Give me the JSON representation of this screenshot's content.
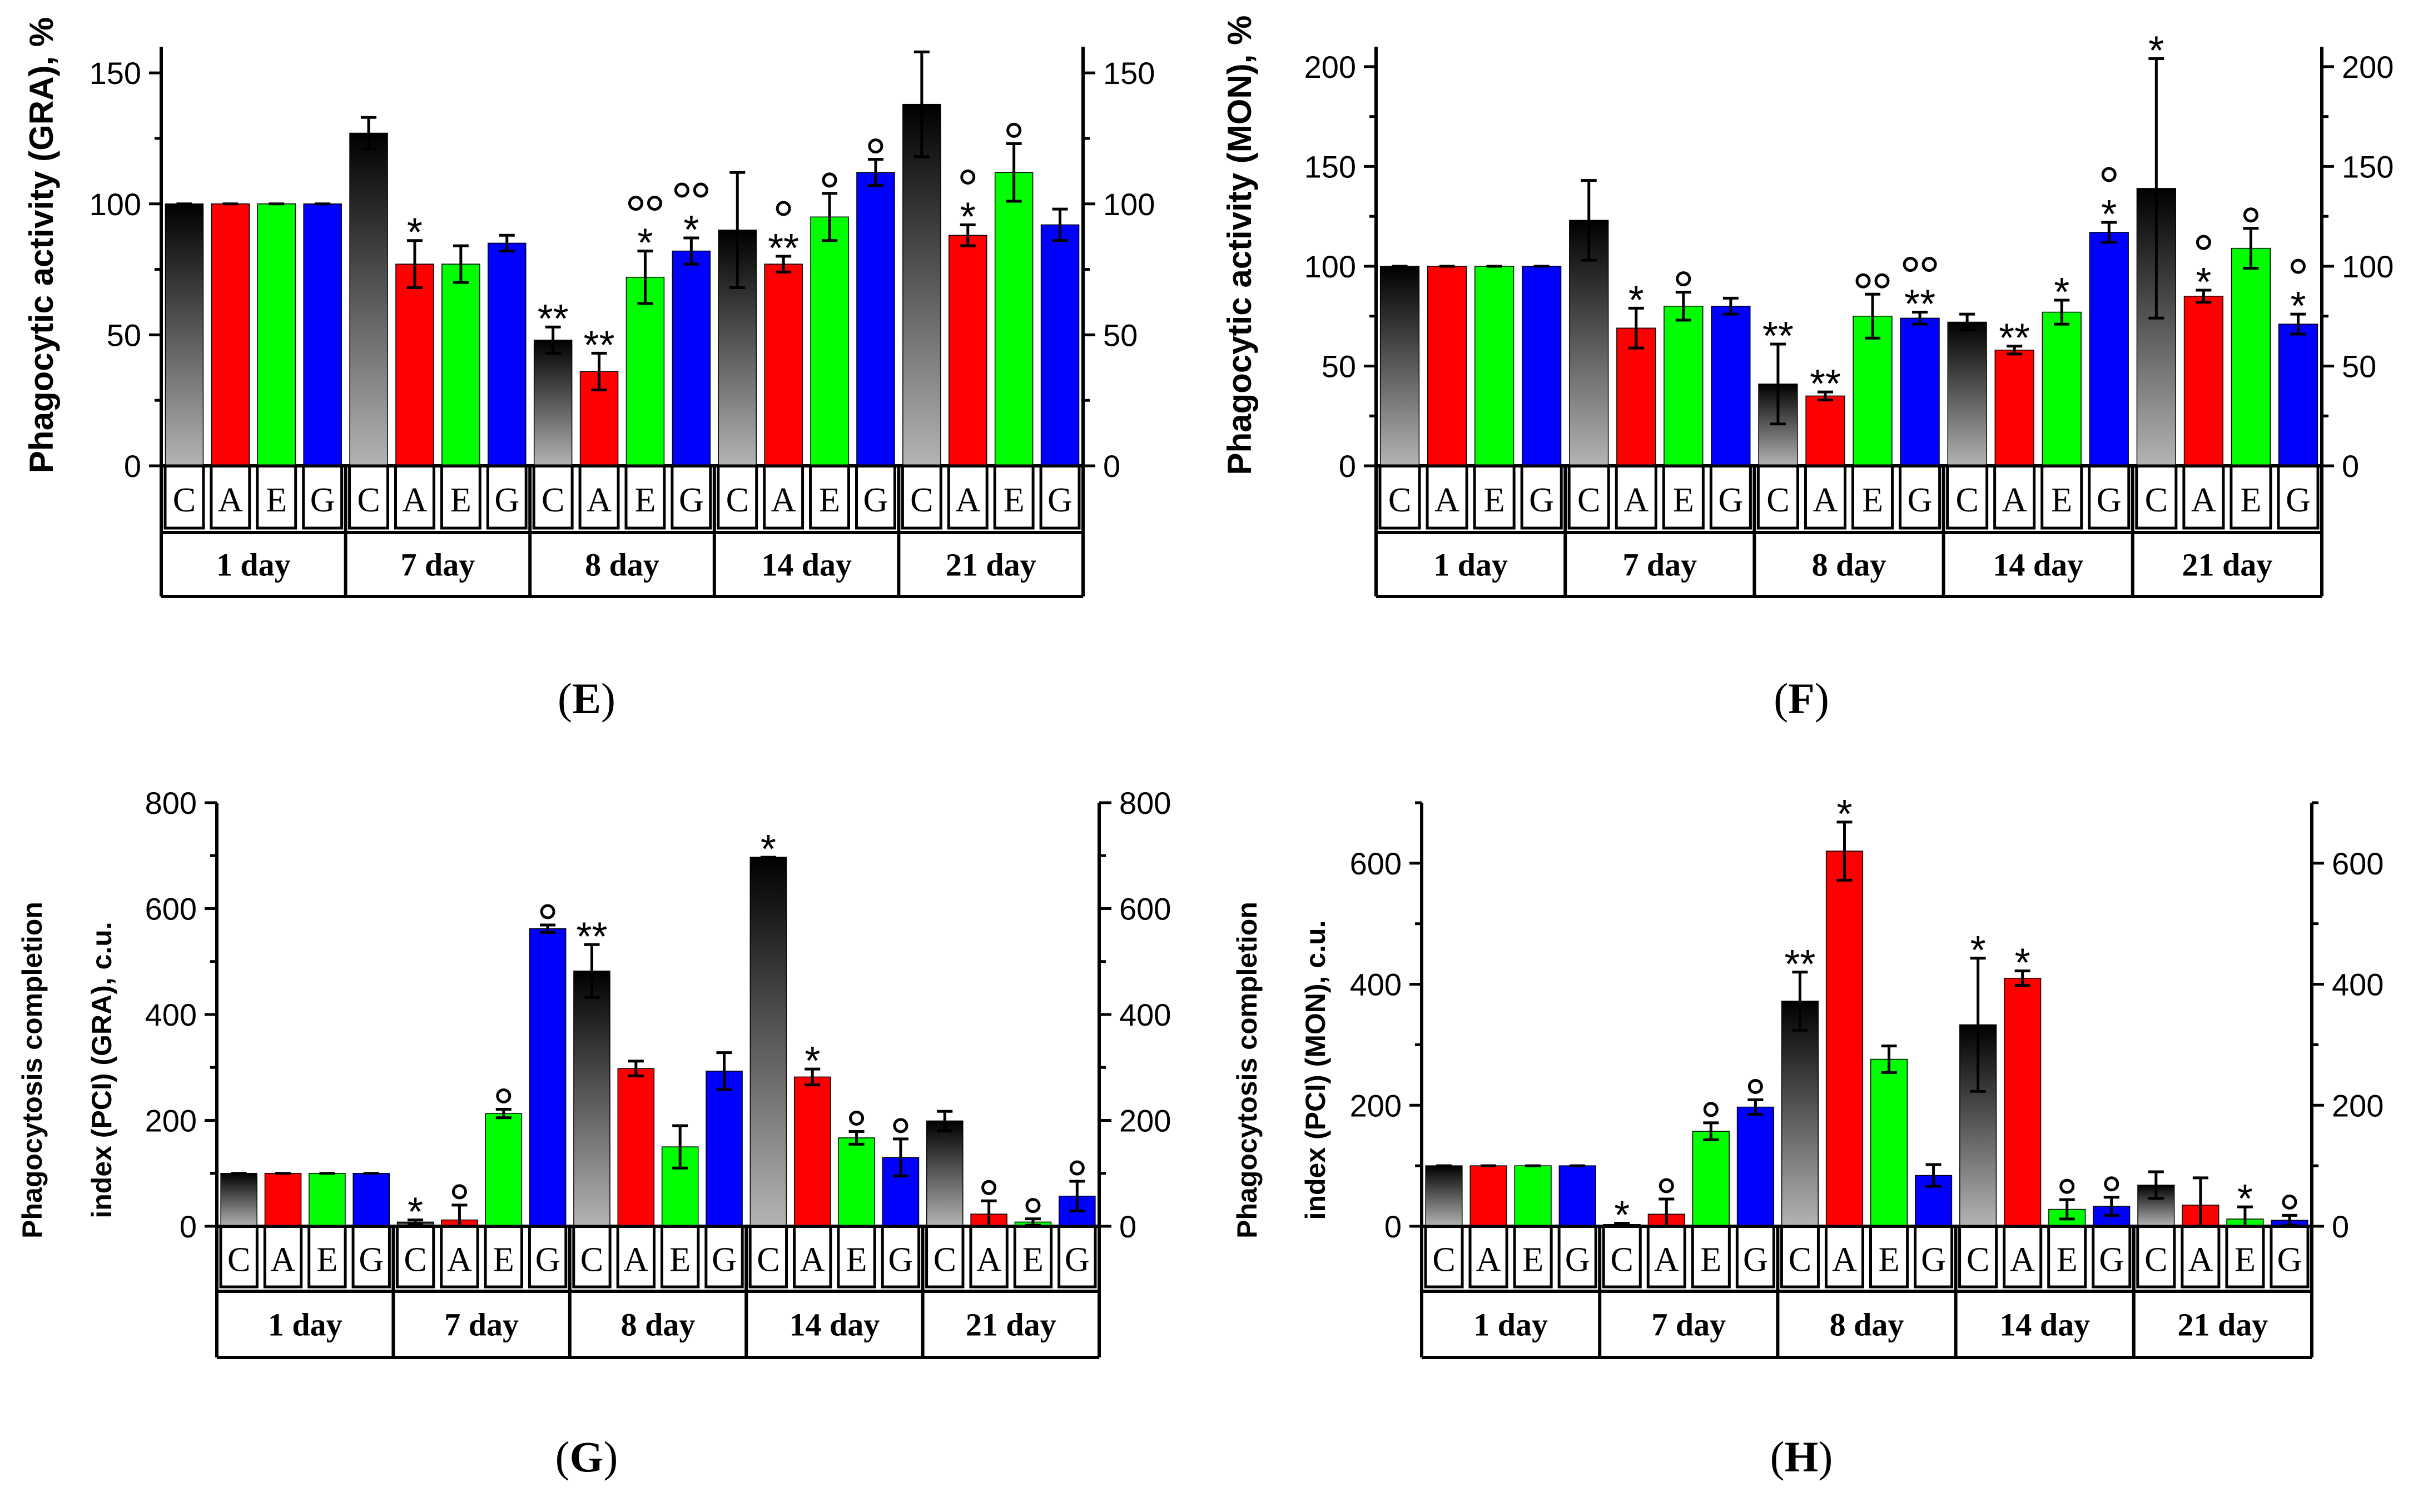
{
  "colors": {
    "C_top": "#000000",
    "C_bottom": "#b4b4b4",
    "A": "#ff0000",
    "E": "#00ff00",
    "G": "#0000ff",
    "axis": "#000000"
  },
  "chart_data": [
    {
      "type": "bar",
      "panel_label": "E",
      "ylabel": "Phagocytic activity (GRA), %",
      "ylim": [
        0,
        160
      ],
      "yticks": [
        0,
        50,
        100,
        150
      ],
      "groups": [
        "1 day",
        "7 day",
        "8 day",
        "14 day",
        "21 day"
      ],
      "categories": [
        "C",
        "A",
        "E",
        "G"
      ],
      "bars": [
        {
          "group": "1 day",
          "cat": "C",
          "value": 100,
          "err": 0,
          "star": "",
          "circles": 0
        },
        {
          "group": "1 day",
          "cat": "A",
          "value": 100,
          "err": 0,
          "star": "",
          "circles": 0
        },
        {
          "group": "1 day",
          "cat": "E",
          "value": 100,
          "err": 0,
          "star": "",
          "circles": 0
        },
        {
          "group": "1 day",
          "cat": "G",
          "value": 100,
          "err": 0,
          "star": "",
          "circles": 0
        },
        {
          "group": "7 day",
          "cat": "C",
          "value": 127,
          "err": 6,
          "star": "",
          "circles": 0
        },
        {
          "group": "7 day",
          "cat": "A",
          "value": 77,
          "err": 9,
          "star": "*",
          "circles": 0
        },
        {
          "group": "7 day",
          "cat": "E",
          "value": 77,
          "err": 7,
          "star": "",
          "circles": 0
        },
        {
          "group": "7 day",
          "cat": "G",
          "value": 85,
          "err": 3,
          "star": "",
          "circles": 0
        },
        {
          "group": "8 day",
          "cat": "C",
          "value": 48,
          "err": 5,
          "star": "**",
          "circles": 0
        },
        {
          "group": "8 day",
          "cat": "A",
          "value": 36,
          "err": 7,
          "star": "**",
          "circles": 0
        },
        {
          "group": "8 day",
          "cat": "E",
          "value": 72,
          "err": 10,
          "star": "*",
          "circles": 2
        },
        {
          "group": "8 day",
          "cat": "G",
          "value": 82,
          "err": 5,
          "star": "*",
          "circles": 2
        },
        {
          "group": "14 day",
          "cat": "C",
          "value": 90,
          "err": 22,
          "star": "",
          "circles": 0
        },
        {
          "group": "14 day",
          "cat": "A",
          "value": 77,
          "err": 3,
          "star": "**",
          "circles": 1
        },
        {
          "group": "14 day",
          "cat": "E",
          "value": 95,
          "err": 9,
          "star": "",
          "circles": 1
        },
        {
          "group": "14 day",
          "cat": "G",
          "value": 112,
          "err": 5,
          "star": "",
          "circles": 1
        },
        {
          "group": "21 day",
          "cat": "C",
          "value": 138,
          "err": 20,
          "star": "",
          "circles": 0
        },
        {
          "group": "21 day",
          "cat": "A",
          "value": 88,
          "err": 4,
          "star": "*",
          "circles": 1
        },
        {
          "group": "21 day",
          "cat": "E",
          "value": 112,
          "err": 11,
          "star": "",
          "circles": 1
        },
        {
          "group": "21 day",
          "cat": "G",
          "value": 92,
          "err": 6,
          "star": "",
          "circles": 0
        }
      ]
    },
    {
      "type": "bar",
      "panel_label": "F",
      "ylabel": "Phagocytic activity (MON), %",
      "ylim": [
        0,
        210
      ],
      "yticks": [
        0,
        50,
        100,
        150,
        200
      ],
      "groups": [
        "1 day",
        "7 day",
        "8 day",
        "14 day",
        "21 day"
      ],
      "categories": [
        "C",
        "A",
        "E",
        "G"
      ],
      "bars": [
        {
          "group": "1 day",
          "cat": "C",
          "value": 100,
          "err": 0,
          "star": "",
          "circles": 0
        },
        {
          "group": "1 day",
          "cat": "A",
          "value": 100,
          "err": 0,
          "star": "",
          "circles": 0
        },
        {
          "group": "1 day",
          "cat": "E",
          "value": 100,
          "err": 0,
          "star": "",
          "circles": 0
        },
        {
          "group": "1 day",
          "cat": "G",
          "value": 100,
          "err": 0,
          "star": "",
          "circles": 0
        },
        {
          "group": "7 day",
          "cat": "C",
          "value": 123,
          "err": 20,
          "star": "",
          "circles": 0
        },
        {
          "group": "7 day",
          "cat": "A",
          "value": 69,
          "err": 10,
          "star": "*",
          "circles": 0
        },
        {
          "group": "7 day",
          "cat": "E",
          "value": 80,
          "err": 7,
          "star": "",
          "circles": 1
        },
        {
          "group": "7 day",
          "cat": "G",
          "value": 80,
          "err": 4,
          "star": "",
          "circles": 0
        },
        {
          "group": "8 day",
          "cat": "C",
          "value": 41,
          "err": 20,
          "star": "**",
          "circles": 0
        },
        {
          "group": "8 day",
          "cat": "A",
          "value": 35,
          "err": 2,
          "star": "**",
          "circles": 0
        },
        {
          "group": "8 day",
          "cat": "E",
          "value": 75,
          "err": 11,
          "star": "",
          "circles": 2
        },
        {
          "group": "8 day",
          "cat": "G",
          "value": 74,
          "err": 3,
          "star": "**",
          "circles": 2
        },
        {
          "group": "14 day",
          "cat": "C",
          "value": 72,
          "err": 4,
          "star": "",
          "circles": 0
        },
        {
          "group": "14 day",
          "cat": "A",
          "value": 58,
          "err": 2,
          "star": "**",
          "circles": 0
        },
        {
          "group": "14 day",
          "cat": "E",
          "value": 77,
          "err": 6,
          "star": "*",
          "circles": 0
        },
        {
          "group": "14 day",
          "cat": "G",
          "value": 117,
          "err": 5,
          "star": "*",
          "circles": 1
        },
        {
          "group": "21 day",
          "cat": "C",
          "value": 139,
          "err": 65,
          "star": "*",
          "circles": 0
        },
        {
          "group": "21 day",
          "cat": "A",
          "value": 85,
          "err": 3,
          "star": "*",
          "circles": 1
        },
        {
          "group": "21 day",
          "cat": "E",
          "value": 109,
          "err": 10,
          "star": "",
          "circles": 1
        },
        {
          "group": "21 day",
          "cat": "G",
          "value": 71,
          "err": 5,
          "star": "*",
          "circles": 1
        }
      ]
    },
    {
      "type": "bar",
      "panel_label": "G",
      "ylabel_line1": "Phagocytosis completion",
      "ylabel_line2": "index (PCI) (GRA), c.u.",
      "ylim": [
        0,
        800
      ],
      "yticks": [
        0,
        200,
        400,
        600,
        800
      ],
      "groups": [
        "1 day",
        "7 day",
        "8 day",
        "14 day",
        "21 day"
      ],
      "categories": [
        "C",
        "A",
        "E",
        "G"
      ],
      "bars": [
        {
          "group": "1 day",
          "cat": "C",
          "value": 100,
          "err": 0,
          "star": "",
          "circles": 0
        },
        {
          "group": "1 day",
          "cat": "A",
          "value": 100,
          "err": 0,
          "star": "",
          "circles": 0
        },
        {
          "group": "1 day",
          "cat": "E",
          "value": 100,
          "err": 0,
          "star": "",
          "circles": 0
        },
        {
          "group": "1 day",
          "cat": "G",
          "value": 100,
          "err": 0,
          "star": "",
          "circles": 0
        },
        {
          "group": "7 day",
          "cat": "C",
          "value": 8,
          "err": 4,
          "star": "*",
          "circles": 0
        },
        {
          "group": "7 day",
          "cat": "A",
          "value": 12,
          "err": 28,
          "star": "",
          "circles": 1
        },
        {
          "group": "7 day",
          "cat": "E",
          "value": 213,
          "err": 8,
          "star": "",
          "circles": 1
        },
        {
          "group": "7 day",
          "cat": "G",
          "value": 562,
          "err": 7,
          "star": "",
          "circles": 1
        },
        {
          "group": "8 day",
          "cat": "C",
          "value": 482,
          "err": 50,
          "star": "**",
          "circles": 0
        },
        {
          "group": "8 day",
          "cat": "A",
          "value": 298,
          "err": 14,
          "star": "",
          "circles": 0
        },
        {
          "group": "8 day",
          "cat": "E",
          "value": 150,
          "err": 40,
          "star": "",
          "circles": 0
        },
        {
          "group": "8 day",
          "cat": "G",
          "value": 293,
          "err": 35,
          "star": "",
          "circles": 0
        },
        {
          "group": "14 day",
          "cat": "C",
          "value": 697,
          "err": 0,
          "star": "*",
          "circles": 0
        },
        {
          "group": "14 day",
          "cat": "A",
          "value": 282,
          "err": 15,
          "star": "*",
          "circles": 0
        },
        {
          "group": "14 day",
          "cat": "E",
          "value": 167,
          "err": 12,
          "star": "",
          "circles": 1
        },
        {
          "group": "14 day",
          "cat": "G",
          "value": 130,
          "err": 35,
          "star": "",
          "circles": 1
        },
        {
          "group": "21 day",
          "cat": "C",
          "value": 199,
          "err": 18,
          "star": "",
          "circles": 0
        },
        {
          "group": "21 day",
          "cat": "A",
          "value": 23,
          "err": 25,
          "star": "",
          "circles": 1
        },
        {
          "group": "21 day",
          "cat": "E",
          "value": 8,
          "err": 6,
          "star": "",
          "circles": 1
        },
        {
          "group": "21 day",
          "cat": "G",
          "value": 57,
          "err": 28,
          "star": "",
          "circles": 1
        }
      ]
    },
    {
      "type": "bar",
      "panel_label": "H",
      "ylabel_line1": "Phagocytosis completion",
      "ylabel_line2": "index (PCI) (MON), c.u.",
      "ylim": [
        0,
        700
      ],
      "yticks": [
        0,
        200,
        400,
        600
      ],
      "groups": [
        "1 day",
        "7 day",
        "8 day",
        "14 day",
        "21 day"
      ],
      "categories": [
        "C",
        "A",
        "E",
        "G"
      ],
      "bars": [
        {
          "group": "1 day",
          "cat": "C",
          "value": 100,
          "err": 0,
          "star": "",
          "circles": 0
        },
        {
          "group": "1 day",
          "cat": "A",
          "value": 100,
          "err": 0,
          "star": "",
          "circles": 0
        },
        {
          "group": "1 day",
          "cat": "E",
          "value": 100,
          "err": 0,
          "star": "",
          "circles": 0
        },
        {
          "group": "1 day",
          "cat": "G",
          "value": 100,
          "err": 0,
          "star": "",
          "circles": 0
        },
        {
          "group": "7 day",
          "cat": "C",
          "value": 3,
          "err": 2,
          "star": "*",
          "circles": 0
        },
        {
          "group": "7 day",
          "cat": "A",
          "value": 20,
          "err": 25,
          "star": "",
          "circles": 1
        },
        {
          "group": "7 day",
          "cat": "E",
          "value": 157,
          "err": 14,
          "star": "",
          "circles": 1
        },
        {
          "group": "7 day",
          "cat": "G",
          "value": 197,
          "err": 12,
          "star": "",
          "circles": 1
        },
        {
          "group": "8 day",
          "cat": "C",
          "value": 372,
          "err": 48,
          "star": "**",
          "circles": 0
        },
        {
          "group": "8 day",
          "cat": "A",
          "value": 620,
          "err": 48,
          "star": "*",
          "circles": 0
        },
        {
          "group": "8 day",
          "cat": "E",
          "value": 276,
          "err": 22,
          "star": "",
          "circles": 0
        },
        {
          "group": "8 day",
          "cat": "G",
          "value": 84,
          "err": 18,
          "star": "",
          "circles": 0
        },
        {
          "group": "14 day",
          "cat": "C",
          "value": 333,
          "err": 110,
          "star": "*",
          "circles": 0
        },
        {
          "group": "14 day",
          "cat": "A",
          "value": 410,
          "err": 12,
          "star": "*",
          "circles": 0
        },
        {
          "group": "14 day",
          "cat": "E",
          "value": 28,
          "err": 16,
          "star": "",
          "circles": 1
        },
        {
          "group": "14 day",
          "cat": "G",
          "value": 33,
          "err": 15,
          "star": "",
          "circles": 1
        },
        {
          "group": "21 day",
          "cat": "C",
          "value": 68,
          "err": 22,
          "star": "",
          "circles": 0
        },
        {
          "group": "21 day",
          "cat": "A",
          "value": 35,
          "err": 45,
          "star": "",
          "circles": 0
        },
        {
          "group": "21 day",
          "cat": "E",
          "value": 12,
          "err": 20,
          "star": "*",
          "circles": 0
        },
        {
          "group": "21 day",
          "cat": "G",
          "value": 10,
          "err": 8,
          "star": "",
          "circles": 1
        }
      ]
    }
  ]
}
